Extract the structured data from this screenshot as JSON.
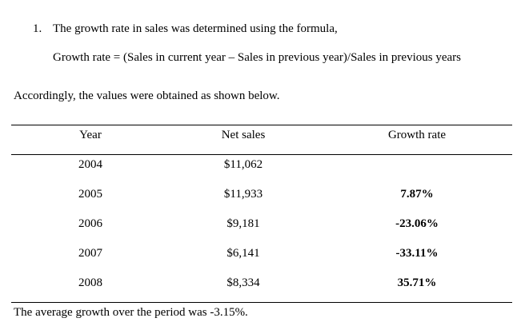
{
  "list_item": {
    "number": "1.",
    "text": "The growth rate in sales was determined using the formula,"
  },
  "formula": "Growth rate = (Sales in current year – Sales in previous year)/Sales in previous years",
  "intro": "Accordingly, the values were obtained as shown below.",
  "table": {
    "headers": [
      "Year",
      "Net sales",
      "Growth rate"
    ],
    "rows": [
      {
        "year": "2004",
        "net_sales": "$11,062",
        "growth_rate": ""
      },
      {
        "year": "2005",
        "net_sales": "$11,933",
        "growth_rate": "7.87%"
      },
      {
        "year": "2006",
        "net_sales": "$9,181",
        "growth_rate": "-23.06%"
      },
      {
        "year": "2007",
        "net_sales": "$6,141",
        "growth_rate": "-33.11%"
      },
      {
        "year": "2008",
        "net_sales": "$8,334",
        "growth_rate": "35.71%"
      }
    ]
  },
  "conclusion": "The average growth over the period was -3.15%."
}
